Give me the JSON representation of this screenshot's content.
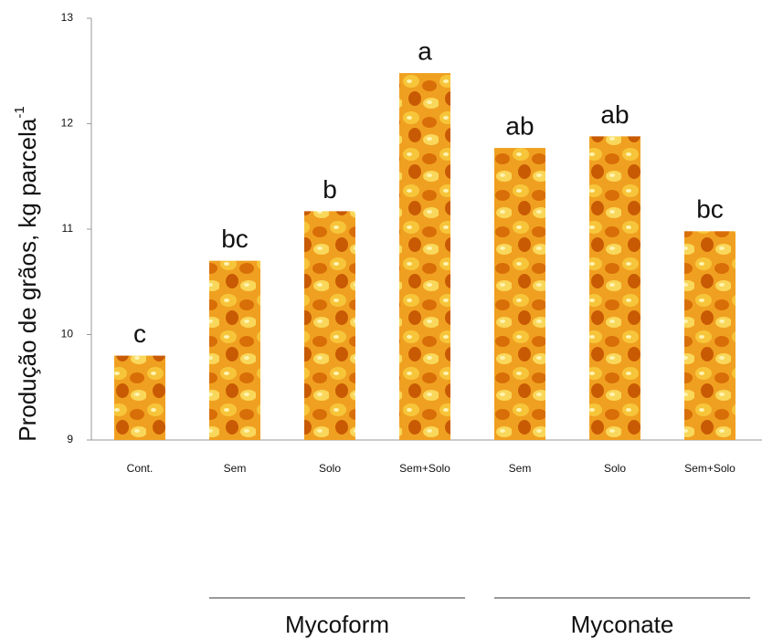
{
  "chart_data": {
    "type": "bar",
    "ylabel": [
      "Produção de grãos, kg parcela",
      "-1"
    ],
    "categories": [
      "Cont.",
      "Sem",
      "Solo",
      "Sem+Solo",
      "Sem",
      "Solo",
      "Sem+Solo"
    ],
    "values": [
      9.8,
      10.7,
      11.17,
      12.48,
      11.77,
      11.88,
      10.98
    ],
    "annotations": [
      "c",
      "bc",
      "b",
      "a",
      "ab",
      "ab",
      "bc"
    ],
    "groups": [
      "Mycoform",
      "Myconate"
    ],
    "color": "#f0a020",
    "ylim": [
      9,
      13
    ],
    "yticks": [
      9,
      10,
      11,
      12,
      13
    ],
    "grid": false
  }
}
